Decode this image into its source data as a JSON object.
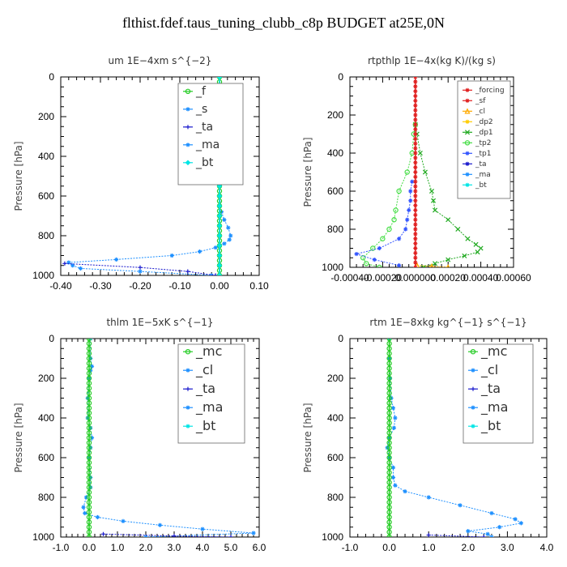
{
  "title": "flthist.fdef.taus_tuning_clubb_c8p  BUDGET at25E,0N",
  "series_colors": {
    "f": "#22cc22",
    "s": "#1e90ff",
    "ta": "#1a1acd",
    "ma": "#1e90ff",
    "bt": "#00e5e5",
    "mc": "#22cc22",
    "cl": "#1e90ff",
    "forcing": "#e02020",
    "sf": "#e02020",
    "cl2": "#ffaa00",
    "dp2": "#ffcc00",
    "dp1": "#22aa22",
    "tp2": "#44dd44",
    "tp1": "#3355ff"
  },
  "chart_data": [
    {
      "type": "line",
      "title": "um   1E−4xm s^{−2}",
      "ylabel": "Pressure [hPa]",
      "xlim": [
        -0.4,
        0.1
      ],
      "ylim": [
        1000,
        0
      ],
      "xticks": [
        -0.4,
        -0.3,
        -0.2,
        -0.1,
        0.0,
        0.1
      ],
      "xtick_labels": [
        "-0.40",
        "-0.30",
        "-0.20",
        "-0.10",
        "0.00",
        "0.10"
      ],
      "yticks": [
        0,
        200,
        400,
        600,
        800,
        1000
      ],
      "ytick_labels": [
        "0",
        "200",
        "400",
        "600",
        "800",
        "1000"
      ],
      "legend": {
        "position": "top-right",
        "entries": [
          "_f",
          "_s",
          "_ta",
          "_ma",
          "_bt"
        ]
      },
      "series": [
        {
          "name": "_f",
          "color": "#22cc22",
          "marker": "circle",
          "y": [
            0,
            50,
            100,
            150,
            200,
            250,
            300,
            350,
            400,
            450,
            500,
            550,
            600,
            650,
            700,
            750,
            800,
            850,
            900,
            950,
            1000
          ],
          "x": [
            0,
            0,
            0,
            0,
            0,
            0,
            0,
            0,
            0,
            0,
            0,
            0,
            0,
            0,
            0,
            0,
            0,
            0,
            0,
            0,
            0
          ]
        },
        {
          "name": "_s",
          "color": "#1e90ff",
          "marker": "star",
          "y": [
            0,
            60,
            100,
            120,
            140,
            160,
            180,
            200,
            250,
            300,
            400,
            500,
            600,
            680,
            720,
            760,
            800,
            820,
            840,
            860,
            880,
            900,
            920,
            935,
            950,
            965,
            980,
            1000
          ],
          "x": [
            0,
            0,
            0.005,
            0.015,
            0.03,
            0.025,
            0.01,
            0.003,
            0,
            -0.002,
            -0.002,
            -0.001,
            0,
            0.005,
            0.012,
            0.022,
            0.028,
            0.025,
            0.012,
            -0.01,
            -0.05,
            -0.12,
            -0.26,
            -0.38,
            -0.37,
            -0.35,
            -0.2,
            -0.02
          ]
        },
        {
          "name": "_ta",
          "color": "#1a1acd",
          "marker": "plus",
          "y": [
            940,
            960,
            980,
            1000
          ],
          "x": [
            -0.39,
            -0.2,
            -0.08,
            -0.01
          ]
        },
        {
          "name": "_bt",
          "color": "#00e5e5",
          "marker": "diamond",
          "y": [
            0,
            100,
            200,
            300,
            400,
            500,
            600,
            700,
            800,
            900,
            1000
          ],
          "x": [
            0,
            0,
            0,
            0,
            0,
            0,
            0,
            0,
            0,
            0,
            0
          ]
        }
      ]
    },
    {
      "type": "line",
      "title": "rtpthlp   1E−4x(kg K)/(kg s)",
      "ylabel": "Pressure [hPa]",
      "xlim": [
        -0.0004,
        0.0006
      ],
      "ylim": [
        1000,
        0
      ],
      "xticks": [
        -0.0004,
        -0.0002,
        0.0,
        0.0002,
        0.0004,
        0.0006
      ],
      "xtick_labels": [
        "-0.00040",
        "-0.00020",
        "0.000000",
        "0.00020",
        "0.00040",
        "0.00060"
      ],
      "yticks": [
        0,
        200,
        400,
        600,
        800,
        1000
      ],
      "ytick_labels": [
        "0",
        "200",
        "400",
        "600",
        "800",
        "1000"
      ],
      "legend": {
        "position": "top-right",
        "entries": [
          "_forcing",
          "_sf",
          "_cl",
          "_dp2",
          "_dp1",
          "_tp2",
          "_tp1",
          "_ta",
          "_ma",
          "_bt"
        ]
      },
      "series": [
        {
          "name": "_dp1",
          "color": "#22aa22",
          "marker": "x",
          "y": [
            250,
            300,
            400,
            500,
            600,
            650,
            700,
            750,
            800,
            850,
            880,
            900,
            920,
            940,
            960,
            980,
            1000
          ],
          "x": [
            0,
            1e-05,
            3e-05,
            6e-05,
            0.0001,
            0.00011,
            0.00012,
            0.0002,
            0.00026,
            0.00032,
            0.00037,
            0.0004,
            0.00038,
            0.0003,
            0.0002,
            0.00012,
            5e-05
          ]
        },
        {
          "name": "_tp2",
          "color": "#44dd44",
          "marker": "circle",
          "y": [
            250,
            300,
            400,
            500,
            600,
            700,
            750,
            800,
            850,
            900,
            950,
            980,
            1000
          ],
          "x": [
            0,
            -1e-05,
            -2e-05,
            -5e-05,
            -0.0001,
            -0.00012,
            -0.00013,
            -0.00016,
            -0.0002,
            -0.00026,
            -0.00032,
            -0.0003,
            -0.00022
          ]
        },
        {
          "name": "_tp1",
          "color": "#3355ff",
          "marker": "star",
          "y": [
            550,
            600,
            650,
            700,
            750,
            800,
            850,
            900,
            930,
            960,
            990
          ],
          "x": [
            -2e-05,
            -3e-05,
            -3e-05,
            -4e-05,
            -5e-05,
            -6e-05,
            -0.0001,
            -0.00022,
            -0.00036,
            -0.00025,
            -0.0001
          ]
        },
        {
          "name": "_cl",
          "color": "#ffaa00",
          "marker": "triangle",
          "y": [
            990,
            995,
            1000
          ],
          "x": [
            1e-05,
            0.0001,
            0.0002
          ]
        },
        {
          "name": "_forcing",
          "color": "#e02020",
          "marker": "star",
          "y": [
            0,
            50,
            100,
            150,
            200,
            250,
            300,
            350,
            400,
            450,
            500,
            550,
            600,
            650,
            700,
            750,
            800,
            850,
            900,
            950,
            1000
          ],
          "x": [
            0,
            0,
            0,
            0,
            0,
            0,
            0,
            0,
            0,
            0,
            0,
            0,
            0,
            0,
            0,
            0,
            0,
            0,
            0,
            0,
            0
          ]
        }
      ]
    },
    {
      "type": "line",
      "title": "thlm   1E−5xK  s^{−1}",
      "ylabel": "Pressure [hPa]",
      "xlim": [
        -1.0,
        6.0
      ],
      "ylim": [
        1000,
        0
      ],
      "xticks": [
        -1,
        0,
        1,
        2,
        3,
        4,
        5,
        6
      ],
      "xtick_labels": [
        "-1.0",
        "0.0",
        "1.0",
        "2.0",
        "3.0",
        "4.0",
        "5.0",
        "6.0"
      ],
      "yticks": [
        0,
        200,
        400,
        600,
        800,
        1000
      ],
      "ytick_labels": [
        "0",
        "200",
        "400",
        "600",
        "800",
        "1000"
      ],
      "legend": {
        "position": "top-right",
        "entries": [
          "_mc",
          "_cl",
          "_ta",
          "_ma",
          "_bt"
        ]
      },
      "series": [
        {
          "name": "_mc",
          "color": "#22cc22",
          "marker": "circle",
          "y": [
            0,
            50,
            100,
            150,
            200,
            250,
            300,
            350,
            400,
            450,
            500,
            550,
            600,
            650,
            700,
            750,
            800,
            850,
            900,
            950,
            1000
          ],
          "x": [
            0,
            0,
            0,
            0,
            0,
            0,
            0,
            0,
            0,
            0,
            0,
            0,
            0,
            0,
            0,
            0,
            0,
            0,
            0,
            0,
            0
          ]
        },
        {
          "name": "_cl",
          "color": "#1e90ff",
          "marker": "star",
          "y": [
            0,
            100,
            140,
            160,
            200,
            300,
            400,
            450,
            500,
            550,
            600,
            700,
            750,
            800,
            850,
            880,
            900,
            920,
            940,
            960,
            980,
            1000
          ],
          "x": [
            0.05,
            0.05,
            0.1,
            0.05,
            0,
            -0.05,
            -0.05,
            0.05,
            0.1,
            0.05,
            0,
            0.05,
            0.05,
            -0.1,
            -0.2,
            -0.15,
            0.3,
            1.2,
            2.5,
            4.0,
            5.8,
            2.0
          ]
        },
        {
          "name": "_ta",
          "color": "#1a1acd",
          "marker": "plus",
          "y": [
            985,
            995,
            1000
          ],
          "x": [
            0.5,
            3.0,
            5.0
          ]
        }
      ]
    },
    {
      "type": "line",
      "title": "rtm   1E−8xkg  kg^{−1} s^{−1}",
      "ylabel": "Pressure [hPa]",
      "xlim": [
        -1.0,
        4.0
      ],
      "ylim": [
        1000,
        0
      ],
      "xticks": [
        -1,
        0,
        1,
        2,
        3,
        4
      ],
      "xtick_labels": [
        "-1.0",
        "0.0",
        "1.0",
        "2.0",
        "3.0",
        "4.0"
      ],
      "yticks": [
        0,
        200,
        400,
        600,
        800,
        1000
      ],
      "ytick_labels": [
        "0",
        "200",
        "400",
        "600",
        "800",
        "1000"
      ],
      "legend": {
        "position": "top-right",
        "entries": [
          "_mc",
          "_cl",
          "_ta",
          "_ma",
          "_bt"
        ]
      },
      "series": [
        {
          "name": "_mc",
          "color": "#22cc22",
          "marker": "circle",
          "y": [
            0,
            50,
            100,
            150,
            200,
            250,
            300,
            350,
            400,
            450,
            500,
            550,
            600,
            650,
            700,
            750,
            800,
            850,
            900,
            950,
            1000
          ],
          "x": [
            0,
            0,
            0,
            0,
            0,
            0,
            0,
            0,
            0,
            0,
            0,
            0,
            0,
            0,
            0,
            0,
            0,
            0,
            0,
            0,
            0
          ]
        },
        {
          "name": "_cl",
          "color": "#1e90ff",
          "marker": "star",
          "y": [
            0,
            100,
            200,
            300,
            350,
            400,
            450,
            500,
            550,
            600,
            650,
            700,
            740,
            770,
            800,
            840,
            880,
            910,
            930,
            950,
            970,
            985,
            1000
          ],
          "x": [
            0,
            0,
            0.02,
            0.05,
            0.1,
            0.15,
            0.12,
            0,
            -0.05,
            0,
            0.1,
            0.1,
            0.15,
            0.4,
            1.0,
            1.8,
            2.6,
            3.2,
            3.35,
            2.8,
            2.0,
            2.5,
            2.6
          ]
        },
        {
          "name": "_ta",
          "color": "#1a1acd",
          "marker": "plus",
          "y": [
            990,
            1000
          ],
          "x": [
            1.0,
            2.4
          ]
        }
      ]
    }
  ]
}
